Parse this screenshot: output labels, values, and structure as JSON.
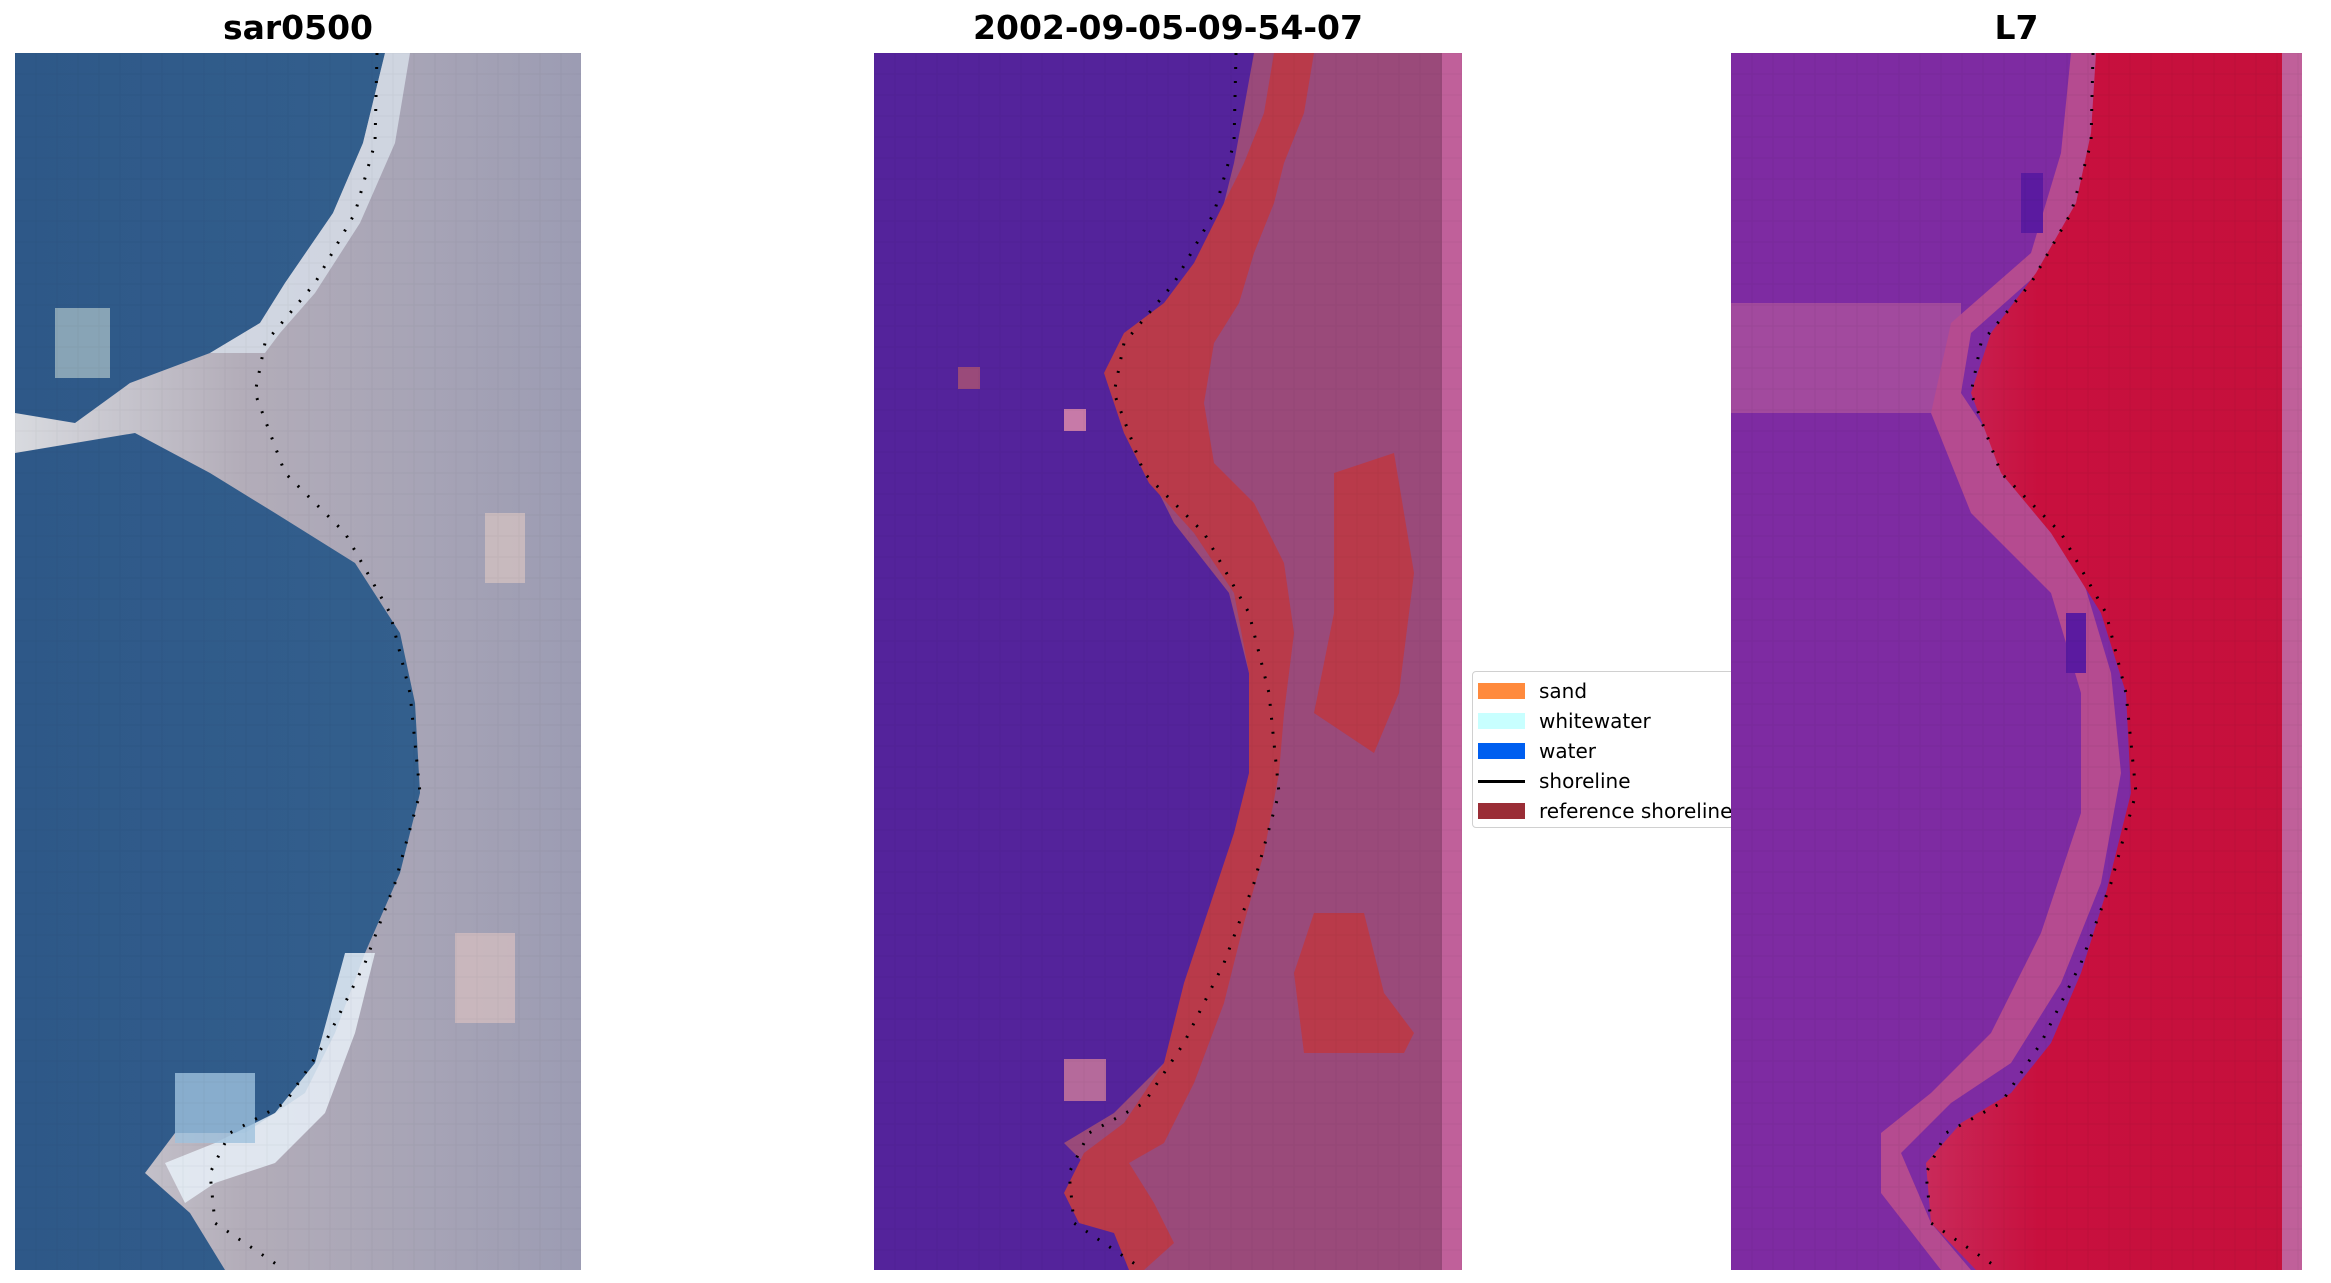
{
  "panels": [
    {
      "title": "sar0500"
    },
    {
      "title": "2002-09-05-09-54-07"
    },
    {
      "title": "L7"
    }
  ],
  "legend": {
    "items": [
      {
        "label": "sand",
        "color": "#ff8a3d",
        "kind": "patch"
      },
      {
        "label": "whitewater",
        "color": "#c8ffff",
        "kind": "patch"
      },
      {
        "label": "water",
        "color": "#005ff0",
        "kind": "patch"
      },
      {
        "label": "shoreline",
        "color": "#000000",
        "kind": "line"
      },
      {
        "label": "reference shoreline",
        "color": "#9a2d36",
        "kind": "patch"
      }
    ]
  },
  "colors": {
    "ocean_rgb": "#2f5a86",
    "land_rgb": "#a8a6b8",
    "classified_water": "#54239b",
    "classified_band": "#b93a4a",
    "classified_land": "#9a4a7a",
    "mndwi_water": "#7a2ba0",
    "mndwi_land": "#c8103e",
    "shoreline_dots": "#000000"
  }
}
